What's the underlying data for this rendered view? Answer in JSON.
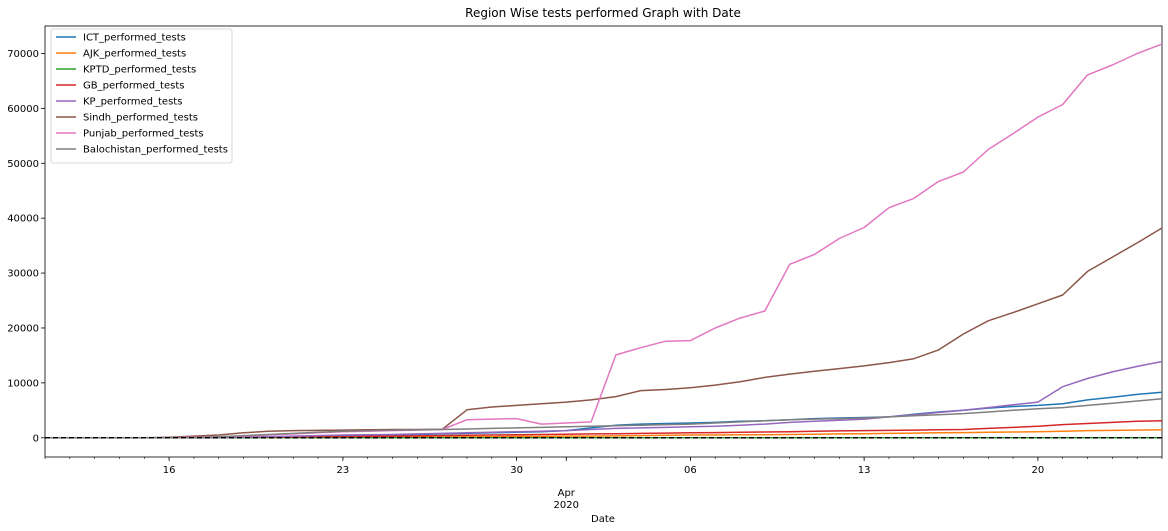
{
  "chart_data": {
    "type": "line",
    "title": "Region Wise tests performed Graph with Date",
    "xlabel": "Date",
    "ylabel": "",
    "x_start": "2020-03-11",
    "x_end": "2020-04-25",
    "ylim": [
      -3500,
      75000
    ],
    "yticks": [
      0,
      10000,
      20000,
      30000,
      40000,
      50000,
      60000,
      70000
    ],
    "ytick_labels": [
      "0",
      "10000",
      "20000",
      "30000",
      "40000",
      "50000",
      "60000",
      "70000"
    ],
    "xticks": [
      {
        "date": "2020-03-16",
        "label": "16"
      },
      {
        "date": "2020-03-23",
        "label": "23"
      },
      {
        "date": "2020-03-30",
        "label": "30"
      },
      {
        "date": "2020-04-06",
        "label": "06"
      },
      {
        "date": "2020-04-13",
        "label": "13"
      },
      {
        "date": "2020-04-20",
        "label": "20"
      }
    ],
    "month_label": "Apr",
    "year_label": "2020",
    "month_tick_date": "2020-04-01",
    "reference_line": {
      "y": 0,
      "style": "dashed",
      "color": "#000000"
    },
    "legend_position": "upper-left",
    "dates": [
      "2020-03-11",
      "2020-03-12",
      "2020-03-13",
      "2020-03-14",
      "2020-03-15",
      "2020-03-16",
      "2020-03-17",
      "2020-03-18",
      "2020-03-19",
      "2020-03-20",
      "2020-03-21",
      "2020-03-22",
      "2020-03-23",
      "2020-03-24",
      "2020-03-25",
      "2020-03-26",
      "2020-03-27",
      "2020-03-28",
      "2020-03-29",
      "2020-03-30",
      "2020-03-31",
      "2020-04-01",
      "2020-04-02",
      "2020-04-03",
      "2020-04-04",
      "2020-04-05",
      "2020-04-06",
      "2020-04-07",
      "2020-04-08",
      "2020-04-09",
      "2020-04-10",
      "2020-04-11",
      "2020-04-12",
      "2020-04-13",
      "2020-04-14",
      "2020-04-15",
      "2020-04-16",
      "2020-04-17",
      "2020-04-18",
      "2020-04-19",
      "2020-04-20",
      "2020-04-21",
      "2020-04-22",
      "2020-04-23",
      "2020-04-24",
      "2020-04-25"
    ],
    "series": [
      {
        "name": "ICT_performed_tests",
        "color": "#1f77b4",
        "values": [
          0,
          0,
          0,
          0,
          0,
          0,
          0,
          0,
          100,
          150,
          200,
          250,
          300,
          400,
          500,
          600,
          700,
          800,
          900,
          1000,
          1100,
          1300,
          1800,
          2300,
          2500,
          2600,
          2700,
          2800,
          3000,
          3100,
          3300,
          3500,
          3600,
          3700,
          3800,
          4300,
          4700,
          5000,
          5400,
          5700,
          5900,
          6200,
          6900,
          7400,
          7900,
          8300
        ]
      },
      {
        "name": "AJK_performed_tests",
        "color": "#ff7f0e",
        "values": [
          0,
          0,
          0,
          0,
          0,
          0,
          0,
          0,
          0,
          0,
          0,
          0,
          50,
          100,
          100,
          150,
          150,
          200,
          200,
          250,
          250,
          300,
          300,
          350,
          400,
          450,
          500,
          500,
          550,
          550,
          600,
          650,
          700,
          750,
          800,
          850,
          900,
          950,
          1000,
          1050,
          1100,
          1200,
          1300,
          1350,
          1400,
          1450
        ]
      },
      {
        "name": "KPTD_performed_tests",
        "color": "#2ca02c",
        "values": [
          0,
          0,
          0,
          0,
          0,
          0,
          0,
          0,
          0,
          0,
          0,
          0,
          0,
          0,
          0,
          0,
          0,
          0,
          0,
          0,
          0,
          0,
          0,
          0,
          0,
          0,
          0,
          0,
          0,
          0,
          0,
          0,
          0,
          0,
          0,
          0,
          0,
          0,
          0,
          0,
          0,
          0,
          0,
          0,
          0,
          0
        ]
      },
      {
        "name": "GB_performed_tests",
        "color": "#d62728",
        "values": [
          0,
          0,
          0,
          0,
          0,
          0,
          50,
          80,
          100,
          120,
          150,
          180,
          200,
          250,
          300,
          350,
          400,
          450,
          500,
          550,
          600,
          650,
          700,
          750,
          800,
          850,
          900,
          950,
          1000,
          1050,
          1100,
          1200,
          1250,
          1300,
          1350,
          1400,
          1450,
          1500,
          1700,
          1900,
          2100,
          2400,
          2600,
          2800,
          3000,
          3100
        ]
      },
      {
        "name": "KP_performed_tests",
        "color": "#9467bd",
        "values": [
          0,
          0,
          0,
          0,
          0,
          0,
          0,
          50,
          100,
          200,
          300,
          400,
          500,
          550,
          600,
          700,
          800,
          900,
          1000,
          1100,
          1200,
          1300,
          1500,
          1700,
          1800,
          1900,
          2000,
          2100,
          2300,
          2500,
          2800,
          3000,
          3200,
          3400,
          3800,
          4200,
          4600,
          5000,
          5500,
          6000,
          6500,
          9300,
          10800,
          12000,
          13000,
          13900
        ]
      },
      {
        "name": "Sindh_performed_tests",
        "color": "#8c564b",
        "values": [
          0,
          0,
          0,
          0,
          0,
          100,
          300,
          500,
          900,
          1200,
          1300,
          1350,
          1400,
          1450,
          1500,
          1500,
          1550,
          5100,
          5600,
          5900,
          6200,
          6500,
          6900,
          7500,
          8600,
          8800,
          9100,
          9600,
          10200,
          11000,
          11600,
          12100,
          12600,
          13100,
          13700,
          14400,
          16000,
          18900,
          21300,
          22800,
          24400,
          26000,
          30300,
          32900,
          35500,
          38200
        ]
      },
      {
        "name": "Punjab_performed_tests",
        "color": "#e377c2",
        "values": [
          0,
          0,
          0,
          0,
          0,
          0,
          100,
          200,
          300,
          500,
          700,
          900,
          1100,
          1200,
          1300,
          1400,
          1500,
          3300,
          3400,
          3500,
          2500,
          2700,
          2900,
          15100,
          16400,
          17600,
          17700,
          20000,
          21800,
          23100,
          31600,
          33400,
          36300,
          38300,
          41900,
          43600,
          46700,
          48400,
          52500,
          55400,
          58400,
          60700,
          66100,
          67900,
          70000,
          71700
        ]
      },
      {
        "name": "Balochistan_performed_tests",
        "color": "#7f7f7f",
        "values": [
          0,
          0,
          0,
          0,
          0,
          0,
          0,
          200,
          400,
          600,
          800,
          1000,
          1200,
          1300,
          1400,
          1450,
          1500,
          1600,
          1700,
          1800,
          1900,
          2000,
          2100,
          2200,
          2300,
          2400,
          2500,
          2700,
          2900,
          3100,
          3300,
          3400,
          3500,
          3600,
          3800,
          4000,
          4200,
          4400,
          4700,
          5000,
          5300,
          5500,
          5900,
          6300,
          6700,
          7100
        ]
      }
    ]
  }
}
